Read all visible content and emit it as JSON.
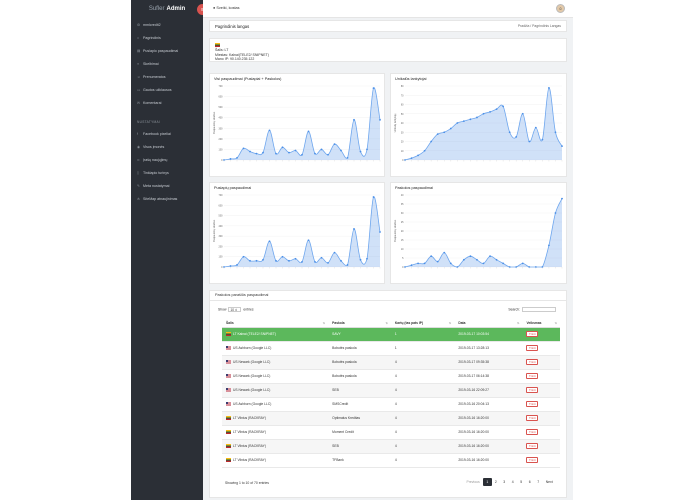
{
  "brand": {
    "prefix": "Sufler",
    "name": "Admin"
  },
  "sidebar": {
    "items": [
      {
        "icon": "cog-icon",
        "label": "mmlcredit2"
      },
      {
        "icon": "home-icon",
        "label": "Pagrindinis"
      },
      {
        "icon": "chart-icon",
        "label": "Puslapio paspaudimai"
      },
      {
        "icon": "bars-icon",
        "label": "Skelbimai"
      },
      {
        "icon": "users-icon",
        "label": "Prenumeratos"
      },
      {
        "icon": "doc-icon",
        "label": "Gautos užklausos"
      },
      {
        "icon": "chat-icon",
        "label": "Komentarai"
      }
    ],
    "heading": "NUSTATYMAI",
    "settings": [
      {
        "icon": "facebook-icon",
        "label": "Facebook pixeliai"
      },
      {
        "icon": "eye-icon",
        "label": "Visos įmonės"
      },
      {
        "icon": "link-icon",
        "label": "Įrašų naujųjimų"
      },
      {
        "icon": "page-icon",
        "label": "Tinklapio turinys"
      },
      {
        "icon": "wrench-icon",
        "label": "Meta nustatymai"
      },
      {
        "icon": "sitemap-icon",
        "label": "SiteMap atnaujinimas"
      }
    ]
  },
  "topbar": {
    "greeting": "Sveiki, kostas"
  },
  "page": {
    "title": "Pagrindinis langas",
    "breadcrumb": "Pradžia  /  Pagrindinis Langas"
  },
  "info": {
    "country": "Šalis: LT",
    "city": "Miestas: Kalnai(TELE2/ SNIPNET)",
    "ip": "Mano IP: 90.140.235.122"
  },
  "charts": [
    {
      "title": "Visi paspaudimai (Puslapiai + Paskolos)",
      "ylabel": "Paspaudimų skaičius",
      "ymax": 700,
      "yticks": [
        0,
        100,
        200,
        300,
        400,
        500,
        600,
        700
      ],
      "values": [
        0,
        10,
        20,
        110,
        80,
        60,
        70,
        280,
        60,
        120,
        70,
        90,
        50,
        270,
        60,
        100,
        50,
        150,
        90,
        20,
        380,
        80,
        100,
        680,
        380
      ]
    },
    {
      "title": "Unikalūs lankytojai",
      "ylabel": "Unikalių lankytojų",
      "ymax": 80,
      "yticks": [
        0,
        10,
        20,
        30,
        40,
        50,
        60,
        70,
        80
      ],
      "values": [
        0,
        2,
        5,
        10,
        20,
        28,
        30,
        34,
        40,
        42,
        44,
        46,
        50,
        52,
        55,
        58,
        30,
        25,
        50,
        20,
        35,
        22,
        78,
        30,
        15
      ]
    },
    {
      "title": "Puslapių paspaudimai",
      "ylabel": "Paspaudimų skaičius",
      "ymax": 700,
      "yticks": [
        0,
        100,
        200,
        300,
        400,
        500,
        600,
        700
      ],
      "values": [
        0,
        10,
        20,
        100,
        60,
        60,
        70,
        250,
        60,
        100,
        60,
        80,
        50,
        260,
        50,
        90,
        40,
        140,
        60,
        20,
        370,
        70,
        80,
        680,
        340
      ]
    },
    {
      "title": "Paskolos paspaudimai",
      "ylabel": "Paspaudimų skaičius",
      "ymax": 40,
      "yticks": [
        0,
        5,
        10,
        15,
        20,
        25,
        30,
        35,
        40
      ],
      "values": [
        0,
        1,
        2,
        2,
        6,
        3,
        8,
        2,
        0,
        4,
        6,
        4,
        2,
        6,
        4,
        2,
        0,
        0,
        2,
        0,
        0,
        0,
        12,
        30,
        38
      ]
    }
  ],
  "chart_data": [
    {
      "type": "area",
      "title": "Visi paspaudimai (Puslapiai + Paskolos)",
      "ylabel": "Paspaudimų skaičius",
      "ylim": [
        0,
        700
      ],
      "values": [
        0,
        10,
        20,
        110,
        80,
        60,
        70,
        280,
        60,
        120,
        70,
        90,
        50,
        270,
        60,
        100,
        50,
        150,
        90,
        20,
        380,
        80,
        100,
        680,
        380
      ]
    },
    {
      "type": "area",
      "title": "Unikalūs lankytojai",
      "ylabel": "Unikalių lankytojų",
      "ylim": [
        0,
        80
      ],
      "values": [
        0,
        2,
        5,
        10,
        20,
        28,
        30,
        34,
        40,
        42,
        44,
        46,
        50,
        52,
        55,
        58,
        30,
        25,
        50,
        20,
        35,
        22,
        78,
        30,
        15
      ]
    },
    {
      "type": "area",
      "title": "Puslapių paspaudimai",
      "ylabel": "Paspaudimų skaičius",
      "ylim": [
        0,
        700
      ],
      "values": [
        0,
        10,
        20,
        100,
        60,
        60,
        70,
        250,
        60,
        100,
        60,
        80,
        50,
        260,
        50,
        90,
        40,
        140,
        60,
        20,
        370,
        70,
        80,
        680,
        340
      ]
    },
    {
      "type": "area",
      "title": "Paskolos paspaudimai",
      "ylabel": "Paspaudimų skaičius",
      "ylim": [
        0,
        40
      ],
      "values": [
        0,
        1,
        2,
        2,
        6,
        3,
        8,
        2,
        0,
        4,
        6,
        4,
        2,
        6,
        4,
        2,
        0,
        0,
        2,
        0,
        0,
        0,
        12,
        30,
        38
      ]
    }
  ],
  "table": {
    "title": "Paskolos parašiūs paspaudimai",
    "show_label": "Show",
    "show_value": "10",
    "entries_label": "entries",
    "search_label": "Search:",
    "headers": [
      "Šalis",
      "Paskola",
      "Kartų (tas pats IP)",
      "Data",
      "Veiksmas"
    ],
    "action_label": "Trinti",
    "rows": [
      {
        "flag": "lt",
        "country": "LT Kalnai (TELE2/ SNIPNET)",
        "loan": "SAVY",
        "times": "1",
        "date": "2019-03-17 10:03:54",
        "hl": true
      },
      {
        "flag": "us",
        "country": "US Ashburn (Google LLC)",
        "loan": "Bobutės paskola",
        "times": "1",
        "date": "2019-03-17 13:28:13"
      },
      {
        "flag": "us",
        "country": "US Newark (Google LLC)",
        "loan": "Bobutės paskola",
        "times": "4",
        "date": "2019-03-17 09:35:38"
      },
      {
        "flag": "us",
        "country": "US Newark (Google LLC)",
        "loan": "Bobutės paskola",
        "times": "4",
        "date": "2019-03-17 06:14:38"
      },
      {
        "flag": "us",
        "country": "US Newark (Google LLC)",
        "loan": "SEB",
        "times": "4",
        "date": "2019-03-16 22:09:27"
      },
      {
        "flag": "us",
        "country": "US Ashburn (Google LLC)",
        "loan": "SMSCredit",
        "times": "4",
        "date": "2019-03-16 20:04:13"
      },
      {
        "flag": "lt",
        "country": "LT Vilnius (RACKRAY)",
        "loan": "Optimalus Kreditas",
        "times": "4",
        "date": "2019-03-16 16:20:00"
      },
      {
        "flag": "lt",
        "country": "LT Vilnius (RACKRAY)",
        "loan": "Moment Credit",
        "times": "4",
        "date": "2019-03-16 16:20:00"
      },
      {
        "flag": "lt",
        "country": "LT Vilnius (RACKRAY)",
        "loan": "SEB",
        "times": "4",
        "date": "2019-03-16 16:20:00"
      },
      {
        "flag": "lt",
        "country": "LT Vilnius (RACKRAY)",
        "loan": "TFBank",
        "times": "4",
        "date": "2019-03-16 16:20:00"
      }
    ],
    "footer_info": "Showing 1 to 10 of 70 entries",
    "pagination": {
      "previous": "Previous",
      "pages": [
        "1",
        "2",
        "3",
        "4",
        "5",
        "6",
        "7"
      ],
      "next": "Next"
    }
  }
}
